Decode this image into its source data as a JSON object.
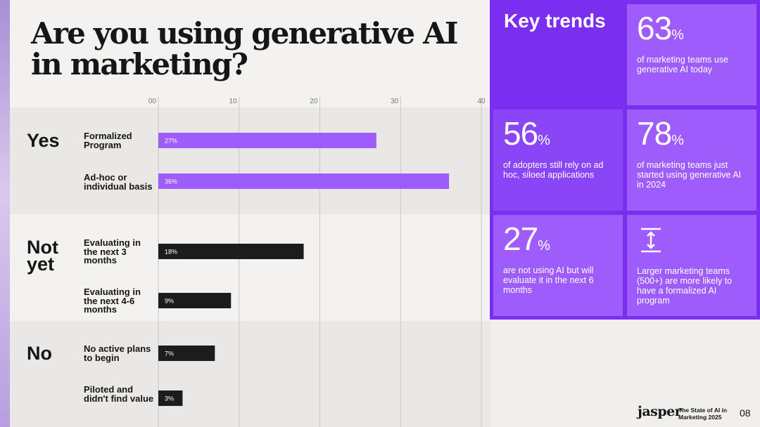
{
  "title": "Are you using generative AI in marketing?",
  "chart_data": {
    "type": "bar",
    "orientation": "horizontal",
    "title": "Are you using generative AI in marketing?",
    "xlim": [
      0,
      40
    ],
    "x_ticks": [
      "00",
      "10",
      "20",
      "30",
      "40"
    ],
    "groups": [
      {
        "name": "Yes",
        "categories": [
          "Formalized Program",
          "Ad-hoc or individual basis"
        ],
        "values": [
          27,
          36
        ],
        "labels": [
          "27%",
          "36%"
        ],
        "color": "#9d5cfb"
      },
      {
        "name": "Not yet",
        "categories": [
          "Evaluating in the next 3 months",
          "Evaluating in the next 4-6 months"
        ],
        "values": [
          18,
          9
        ],
        "labels": [
          "18%",
          "9%"
        ],
        "color": "#1c1c1c"
      },
      {
        "name": "No",
        "categories": [
          "No active plans to begin",
          "Piloted and didn't find value"
        ],
        "values": [
          7,
          3
        ],
        "labels": [
          "7%",
          "3%"
        ],
        "color": "#1c1c1c"
      }
    ]
  },
  "key_trends": {
    "title": "Key trends",
    "cards": [
      {
        "value": "63",
        "unit": "%",
        "text": "of marketing teams use generative AI today"
      },
      {
        "value": "56",
        "unit": "%",
        "text": "of adopters still rely on ad hoc, siloed applications"
      },
      {
        "value": "78",
        "unit": "%",
        "text": "of marketing teams just started using generative AI in 2024"
      },
      {
        "value": "27",
        "unit": "%",
        "text": "are not using AI but will evaluate it in the next 6 months"
      },
      {
        "icon": "expand-vertical-icon",
        "text": "Larger marketing teams (500+) are more likely to have a formalized AI program"
      }
    ]
  },
  "footer": {
    "logo": "jasper",
    "report": "The State of AI in Marketing 2025",
    "page": "08"
  }
}
